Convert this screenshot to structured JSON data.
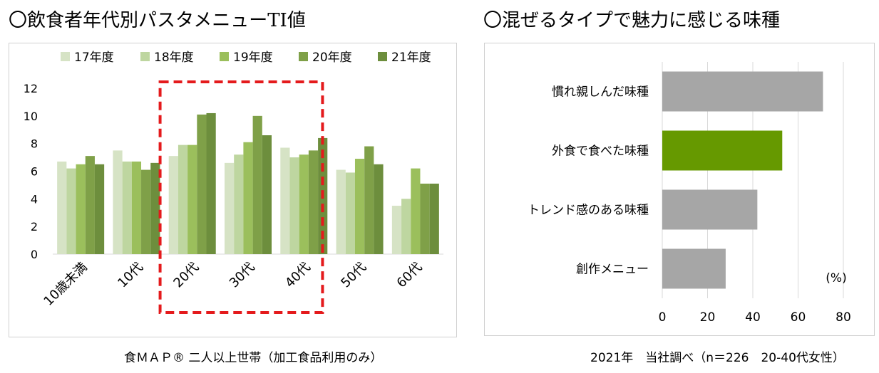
{
  "left": {
    "title": "〇飲食者年代別パスタメニューTI値",
    "caption": "食ＭＡＰ® 二人以上世帯（加工食品利用のみ）"
  },
  "right": {
    "title": "〇混ぜるタイプで魅力に感じる味種",
    "caption": "2021年　当社調べ（n＝226　20-40代女性）"
  },
  "chart_data": [
    {
      "type": "bar",
      "categories": [
        "10歳未満",
        "10代",
        "20代",
        "30代",
        "40代",
        "50代",
        "60代"
      ],
      "series": [
        {
          "name": "17年度",
          "color": "#d6e3c5",
          "values": [
            6.7,
            7.5,
            7.1,
            6.6,
            7.7,
            6.1,
            3.5
          ]
        },
        {
          "name": "18年度",
          "color": "#bed6a0",
          "values": [
            6.2,
            6.7,
            7.9,
            7.2,
            7.0,
            5.9,
            4.0
          ]
        },
        {
          "name": "19年度",
          "color": "#9bbf5c",
          "values": [
            6.5,
            6.7,
            7.9,
            8.1,
            7.2,
            6.9,
            6.2
          ]
        },
        {
          "name": "20年度",
          "color": "#7fa048",
          "values": [
            7.1,
            6.1,
            10.1,
            10.0,
            7.5,
            7.8,
            5.1
          ]
        },
        {
          "name": "21年度",
          "color": "#6d8e3d",
          "values": [
            6.5,
            6.6,
            10.2,
            8.6,
            8.4,
            6.5,
            5.1
          ]
        }
      ],
      "ylim": [
        0,
        12
      ],
      "yticks": [
        0,
        2,
        4,
        6,
        8,
        10,
        12
      ],
      "legend": "top",
      "highlight": {
        "categories": [
          "20代",
          "30代",
          "40代"
        ],
        "color": "#e41a1c",
        "style": "dashed"
      }
    },
    {
      "type": "bar",
      "orientation": "horizontal",
      "categories": [
        "慣れ親しんだ味種",
        "外食で食べた味種",
        "トレンド感のある味種",
        "創作メニュー"
      ],
      "values": [
        71,
        53,
        42,
        28
      ],
      "colors": [
        "#a6a6a6",
        "#669900",
        "#a6a6a6",
        "#a6a6a6"
      ],
      "xlim": [
        0,
        80
      ],
      "xticks": [
        0,
        20,
        40,
        60,
        80
      ],
      "unit_label": "(%)",
      "grid": true
    }
  ]
}
